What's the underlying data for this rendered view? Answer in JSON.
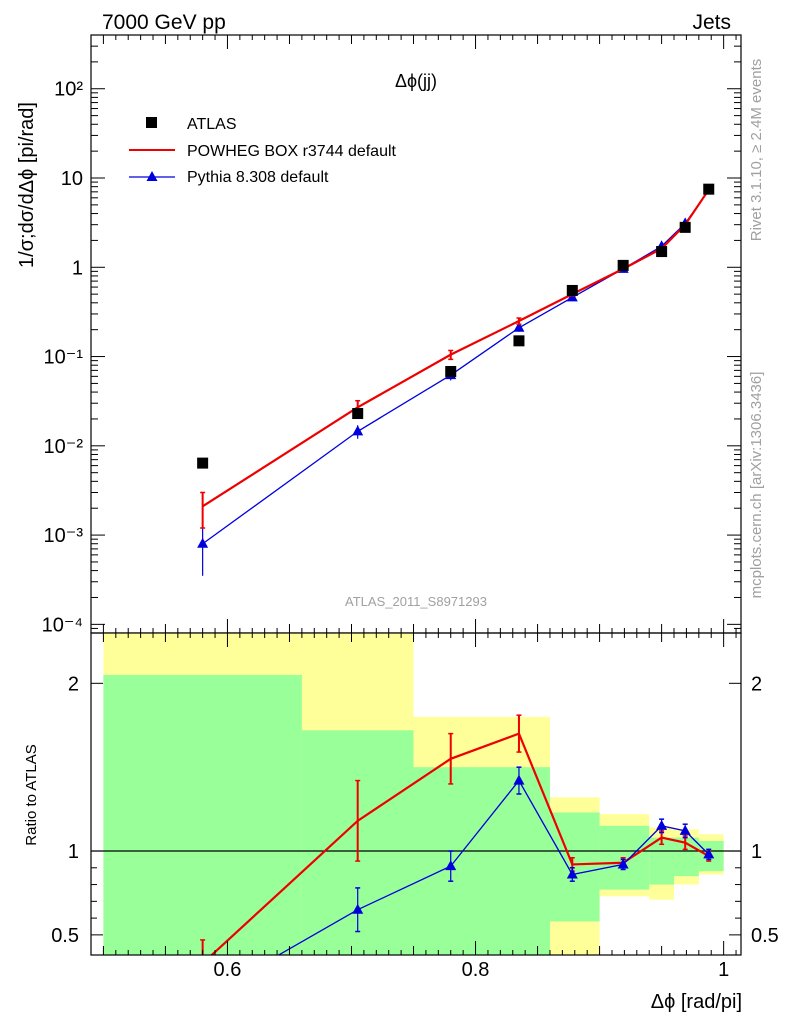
{
  "header": {
    "left": "7000 GeV pp",
    "right": "Jets"
  },
  "side_text": {
    "top": "Rivet 3.1.10, ≥ 2.4M events",
    "bottom": "mcplots.cern.ch [arXiv:1306.3436]"
  },
  "watermark": "ATLAS_2011_S8971293",
  "colors": {
    "atlas": "#000000",
    "powheg": "#ee0000",
    "pythia": "#0000dd",
    "band_inner": "#99ff99",
    "band_outer": "#ffff99"
  },
  "chart_data": [
    {
      "type": "scatter",
      "panel": "main",
      "title": "Δϕ(jj)",
      "ylabel": "1/σ;dσ/dΔϕ [pi/rad]",
      "yscale": "log",
      "xlim": [
        0.49,
        1.014
      ],
      "ylim": [
        8e-05,
        400
      ],
      "y_ticks": [
        "10⁻⁴",
        "10⁻³",
        "10⁻²",
        "10⁻¹",
        "1",
        "10",
        "10²"
      ],
      "legend_position": "top-left",
      "series": [
        {
          "name": "ATLAS",
          "marker": "square",
          "x": [
            0.58,
            0.705,
            0.78,
            0.835,
            0.878,
            0.919,
            0.95,
            0.969,
            0.988
          ],
          "y": [
            0.0064,
            0.023,
            0.068,
            0.15,
            0.55,
            1.05,
            1.5,
            2.8,
            7.5
          ]
        },
        {
          "name": "POWHEG BOX r3744 default",
          "marker": "line",
          "x": [
            0.58,
            0.705,
            0.78,
            0.835,
            0.878,
            0.919,
            0.95,
            0.969,
            0.988
          ],
          "y": [
            0.0021,
            0.027,
            0.105,
            0.25,
            0.5,
            0.96,
            1.62,
            3.0,
            7.4
          ],
          "yerr": [
            0.0009,
            0.005,
            0.012,
            0.02,
            0.02,
            0.02,
            0.04,
            0.06,
            0.15
          ]
        },
        {
          "name": "Pythia 8.308 default",
          "marker": "triangle",
          "x": [
            0.58,
            0.705,
            0.78,
            0.835,
            0.878,
            0.919,
            0.95,
            0.969,
            0.988
          ],
          "y": [
            0.0008,
            0.0145,
            0.062,
            0.21,
            0.46,
            0.96,
            1.72,
            3.1,
            7.3
          ],
          "yerr": [
            0.00045,
            0.0025,
            0.008,
            0.02,
            0.02,
            0.02,
            0.04,
            0.06,
            0.15
          ]
        }
      ]
    },
    {
      "type": "line",
      "panel": "ratio",
      "ylabel": "Ratio to ATLAS",
      "xlabel": "Δϕ [rad/pi]",
      "xlim": [
        0.49,
        1.014
      ],
      "ylim": [
        0.38,
        2.3
      ],
      "x_ticks": [
        0.6,
        0.8,
        1
      ],
      "y_ticks": [
        0.5,
        1,
        2
      ],
      "reference_line": 1,
      "bands": {
        "edges": [
          0.5,
          0.66,
          0.75,
          0.86,
          0.9,
          0.94,
          0.96,
          0.98,
          1.0
        ],
        "inner_low": [
          0.38,
          0.38,
          0.38,
          0.58,
          0.77,
          0.8,
          0.85,
          0.88
        ],
        "inner_high": [
          2.05,
          1.72,
          1.5,
          1.23,
          1.15,
          1.08,
          1.08,
          1.06
        ],
        "outer_low": [
          0.38,
          0.38,
          0.38,
          0.38,
          0.73,
          0.71,
          0.8,
          0.86
        ],
        "outer_high": [
          2.3,
          2.3,
          1.8,
          1.32,
          1.22,
          1.14,
          1.13,
          1.1
        ]
      },
      "series": [
        {
          "name": "POWHEG BOX r3744 default",
          "x": [
            0.58,
            0.705,
            0.78,
            0.835,
            0.878,
            0.919,
            0.95,
            0.969,
            0.988
          ],
          "y": [
            0.33,
            1.18,
            1.55,
            1.7,
            0.92,
            0.93,
            1.08,
            1.05,
            0.97
          ],
          "yerr": [
            0.14,
            0.24,
            0.15,
            0.11,
            0.04,
            0.03,
            0.04,
            0.04,
            0.03
          ]
        },
        {
          "name": "Pythia 8.308 default",
          "x": [
            0.58,
            0.705,
            0.78,
            0.835,
            0.878,
            0.919,
            0.95,
            0.969,
            0.988
          ],
          "y": [
            0.12,
            0.65,
            0.91,
            1.42,
            0.86,
            0.92,
            1.15,
            1.12,
            0.98
          ],
          "yerr": [
            0.07,
            0.13,
            0.09,
            0.08,
            0.04,
            0.03,
            0.04,
            0.04,
            0.03
          ]
        }
      ]
    }
  ]
}
